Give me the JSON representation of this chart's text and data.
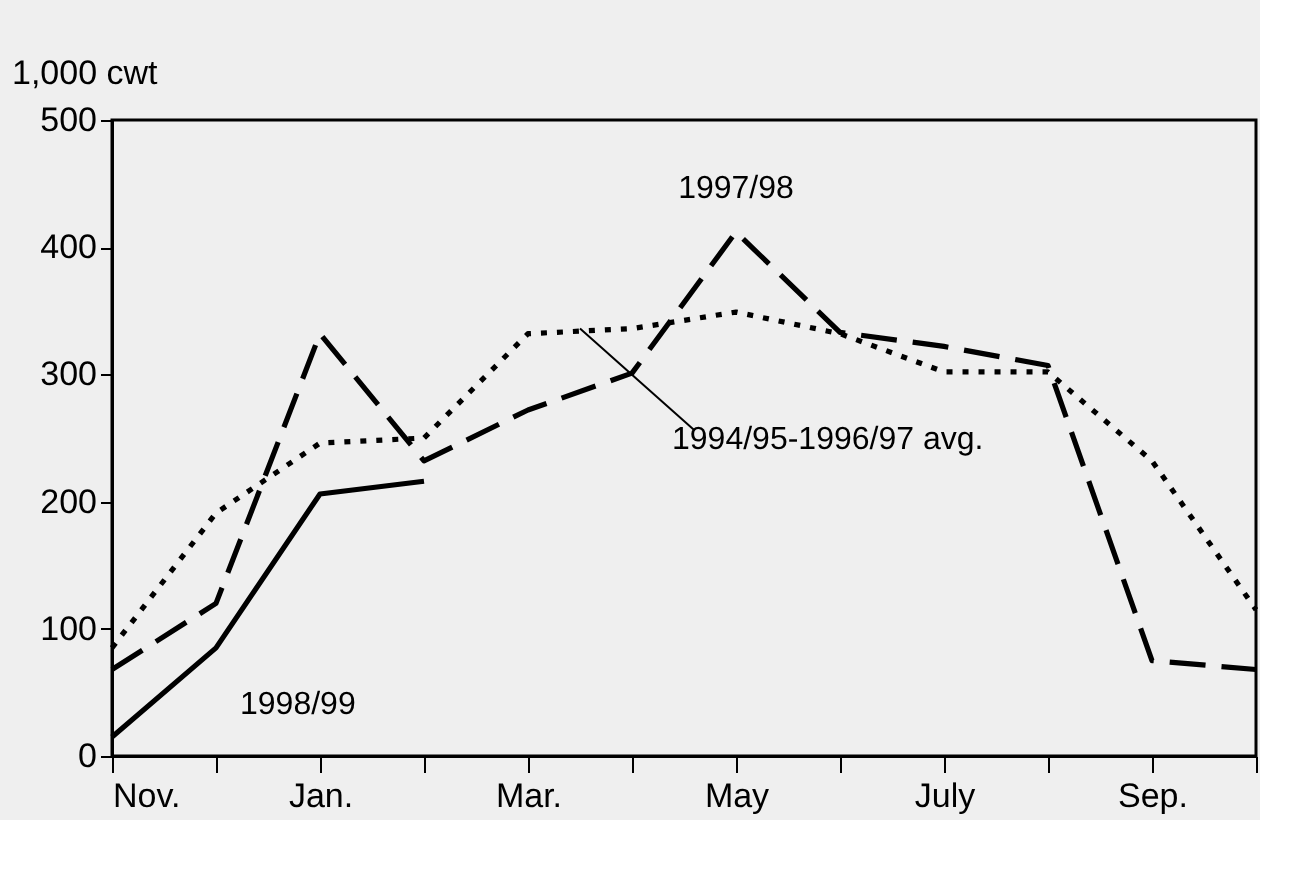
{
  "chart_data": {
    "type": "line",
    "ylabel": "1,000 cwt",
    "categories": [
      "Nov.",
      null,
      "Jan.",
      null,
      "Mar.",
      null,
      "May",
      null,
      "July",
      null,
      "Sep.",
      null
    ],
    "series": [
      {
        "name": "1994/95-1996/97 avg.",
        "color": "#000000",
        "line_style": "dotted",
        "values": [
          85,
          191,
          246,
          250,
          332,
          336,
          349,
          332,
          302,
          302,
          232,
          115
        ]
      },
      {
        "name": "1997/98",
        "color": "#000000",
        "line_style": "dashed",
        "values": [
          68,
          120,
          332,
          232,
          272,
          301,
          412,
          333,
          322,
          307,
          75,
          68
        ]
      },
      {
        "name": "1998/99",
        "color": "#000000",
        "line_style": "solid",
        "values": [
          15,
          85,
          206,
          216,
          null,
          null,
          null,
          null,
          null,
          null,
          null,
          null
        ]
      }
    ],
    "ylim": [
      0,
      500
    ],
    "yticks": [
      0,
      100,
      200,
      300,
      400,
      500
    ],
    "grid": false,
    "legend": false,
    "marker": "none"
  }
}
